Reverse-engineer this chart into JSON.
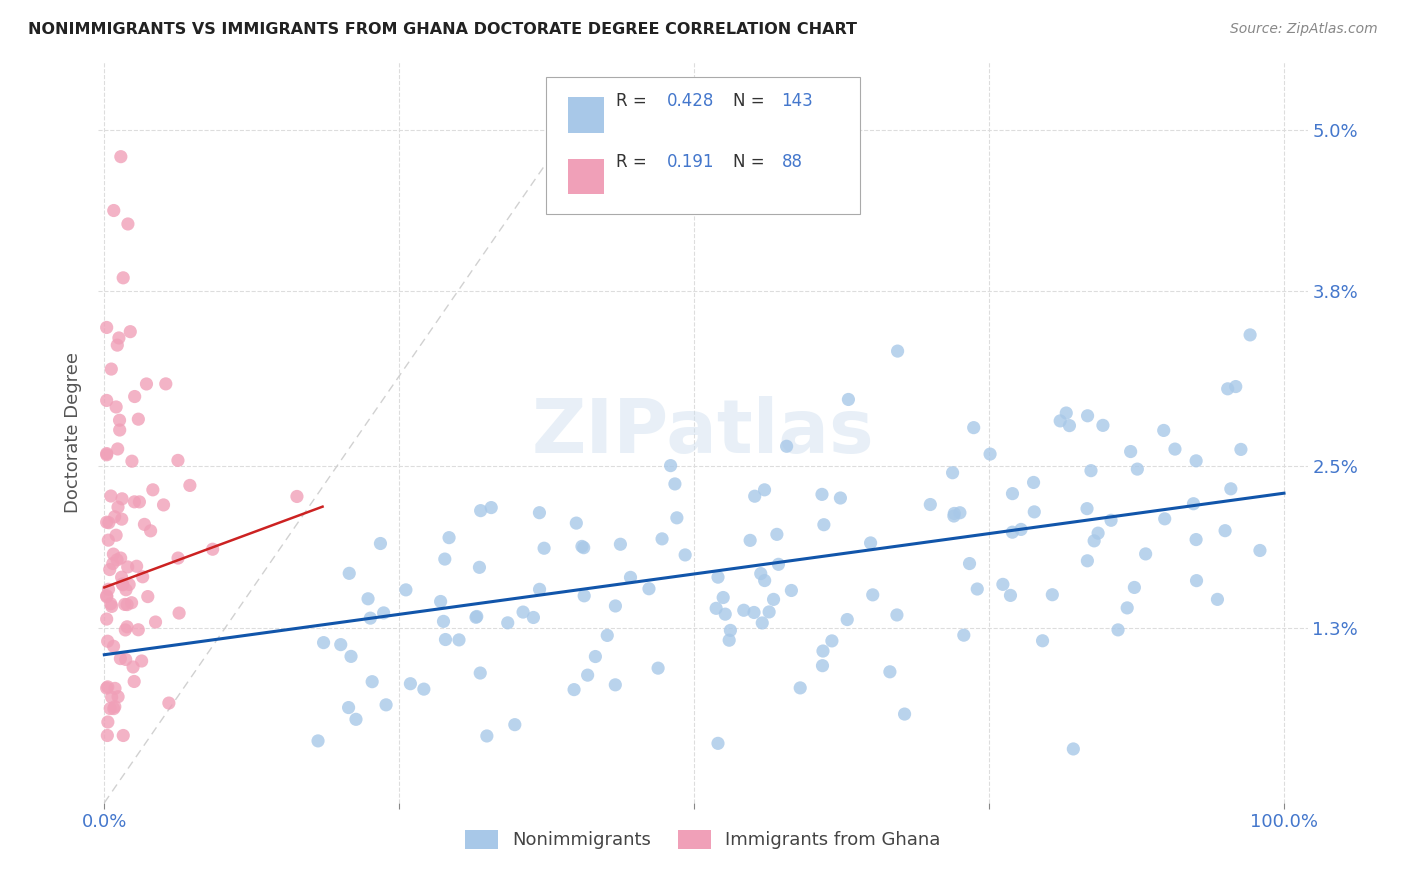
{
  "title": "NONIMMIGRANTS VS IMMIGRANTS FROM GHANA DOCTORATE DEGREE CORRELATION CHART",
  "source": "Source: ZipAtlas.com",
  "ylabel": "Doctorate Degree",
  "color_blue": "#a8c8e8",
  "color_blue_line": "#1155aa",
  "color_pink": "#f0a0b8",
  "color_pink_line": "#cc2222",
  "color_diag": "#cccccc",
  "background": "#ffffff",
  "watermark": "ZIPatlas",
  "ymin": 0.0,
  "ymax": 0.055,
  "xmin": -0.005,
  "xmax": 1.02
}
